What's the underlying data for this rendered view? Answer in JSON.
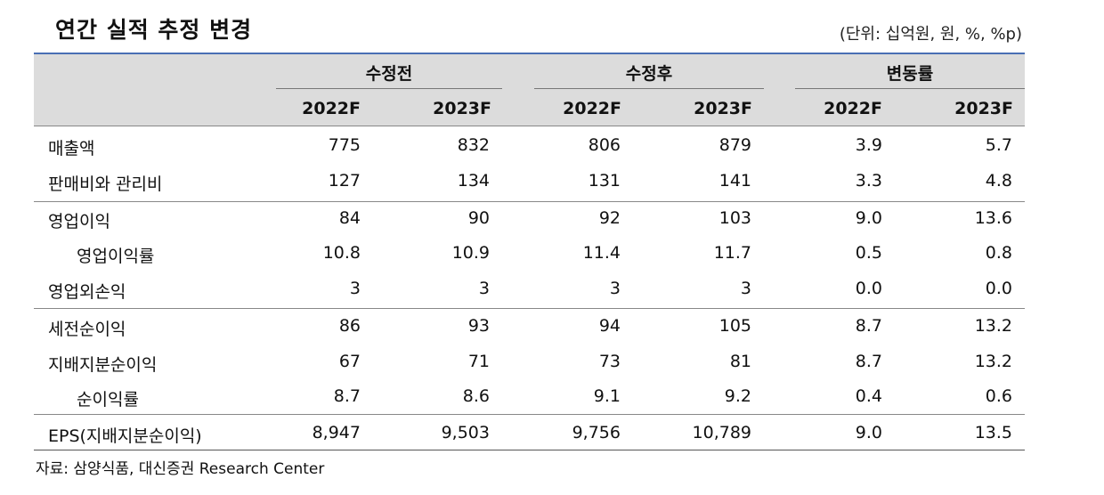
{
  "title": "연간 실적 추정 변경",
  "unit": "(단위: 십억원, 원, %, %p)",
  "groups": [
    "수정전",
    "수정후",
    "변동률"
  ],
  "years": [
    "2022F",
    "2023F",
    "2022F",
    "2023F",
    "2022F",
    "2023F"
  ],
  "rows": [
    {
      "label": "매출액",
      "values": [
        "775",
        "832",
        "806",
        "879",
        "3.9",
        "5.7"
      ]
    },
    {
      "label": "판매비와 관리비",
      "values": [
        "127",
        "134",
        "131",
        "141",
        "3.3",
        "4.8"
      ]
    },
    {
      "label": "영업이익",
      "values": [
        "84",
        "90",
        "92",
        "103",
        "9.0",
        "13.6"
      ]
    },
    {
      "label": "영업이익률",
      "values": [
        "10.8",
        "10.9",
        "11.4",
        "11.7",
        "0.5",
        "0.8"
      ]
    },
    {
      "label": "영업외손익",
      "values": [
        "3",
        "3",
        "3",
        "3",
        "0.0",
        "0.0"
      ]
    },
    {
      "label": "세전순이익",
      "values": [
        "86",
        "93",
        "94",
        "105",
        "8.7",
        "13.2"
      ]
    },
    {
      "label": "지배지분순이익",
      "values": [
        "67",
        "71",
        "73",
        "81",
        "8.7",
        "13.2"
      ]
    },
    {
      "label": "순이익률",
      "values": [
        "8.7",
        "8.6",
        "9.1",
        "9.2",
        "0.4",
        "0.6"
      ]
    },
    {
      "label": "EPS(지배지분순이익)",
      "values": [
        "8,947",
        "9,503",
        "9,756",
        "10,789",
        "9.0",
        "13.5"
      ]
    }
  ],
  "source": "자료: 삼양식품, 대신증권 Research Center"
}
